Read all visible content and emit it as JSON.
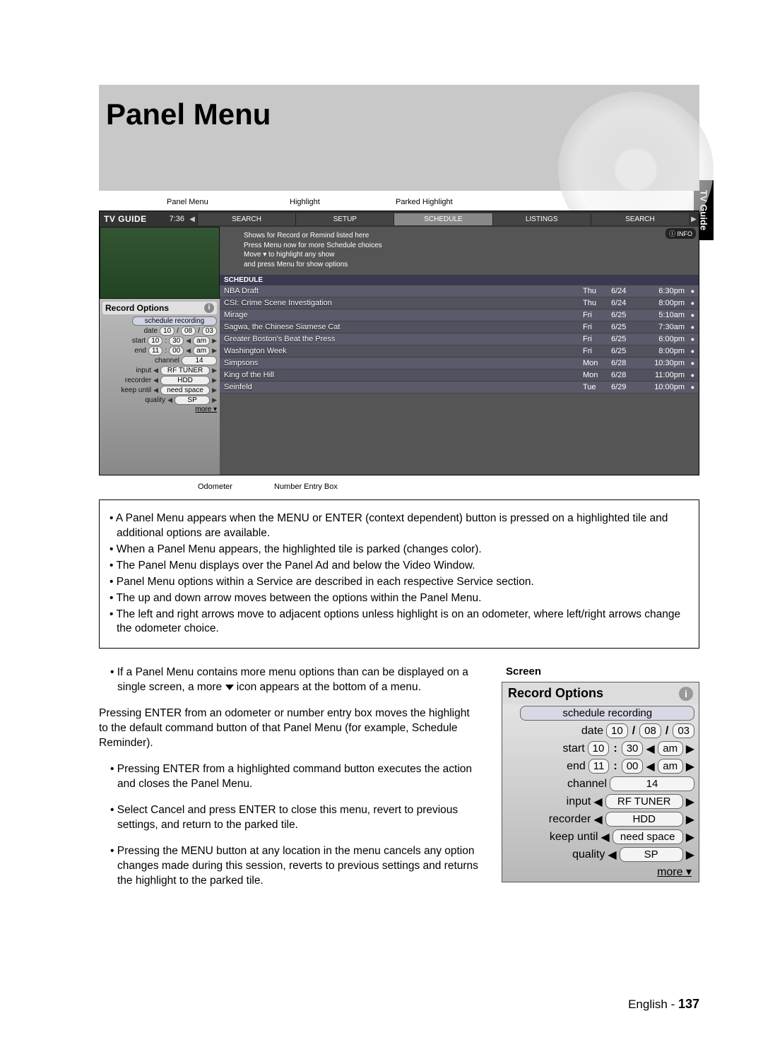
{
  "page": {
    "title": "Panel Menu",
    "side_tab": "TV Guide",
    "footer_lang": "English",
    "footer_page": "137"
  },
  "labels": {
    "panel_menu": "Panel Menu",
    "highlight": "Highlight",
    "parked": "Parked Highlight",
    "odometer": "Odometer",
    "number_entry": "Number Entry Box",
    "screen": "Screen"
  },
  "tv": {
    "logo": "TV GUIDE",
    "time": "7:36",
    "info": "INFO",
    "tabs": [
      "SEARCH",
      "SETUP",
      "SCHEDULE",
      "LISTINGS",
      "SEARCH"
    ],
    "hint": [
      "Shows for Record or Remind listed here",
      "Press Menu now for more Schedule choices",
      "Move ▾ to highlight any show",
      "and press Menu for show options"
    ],
    "schedule_header": "SCHEDULE",
    "rows": [
      {
        "title": "NBA Draft",
        "day": "Thu",
        "date": "6/24",
        "time": "6:30pm"
      },
      {
        "title": "CSI: Crime Scene Investigation",
        "day": "Thu",
        "date": "6/24",
        "time": "8:00pm"
      },
      {
        "title": "Mirage",
        "day": "Fri",
        "date": "6/25",
        "time": "5:10am"
      },
      {
        "title": "Sagwa, the Chinese Siamese Cat",
        "day": "Fri",
        "date": "6/25",
        "time": "7:30am"
      },
      {
        "title": "Greater Boston's Beat the Press",
        "day": "Fri",
        "date": "6/25",
        "time": "6:00pm"
      },
      {
        "title": "Washington Week",
        "day": "Fri",
        "date": "6/25",
        "time": "8:00pm"
      },
      {
        "title": "Simpsons",
        "day": "Mon",
        "date": "6/28",
        "time": "10:30pm"
      },
      {
        "title": "King of the Hill",
        "day": "Mon",
        "date": "6/28",
        "time": "11:00pm"
      },
      {
        "title": "Seinfeld",
        "day": "Tue",
        "date": "6/29",
        "time": "10:00pm"
      }
    ]
  },
  "panel": {
    "title": "Record Options",
    "cmd": "schedule recording",
    "date": {
      "m": "10",
      "d": "08",
      "y": "03"
    },
    "start": {
      "h": "10",
      "m": "30",
      "ap": "am"
    },
    "end": {
      "h": "11",
      "m": "00",
      "ap": "am"
    },
    "channel": "14",
    "input": "RF TUNER",
    "recorder": "HDD",
    "keep": "need space",
    "quality": "SP",
    "more": "more ▾"
  },
  "body": {
    "b1": "• A Panel Menu appears when the MENU or ENTER (context dependent) button is pressed on a highlighted tile and additional options are available.",
    "b2": "• When a Panel Menu appears, the highlighted tile is parked (changes color).",
    "b3": "• The Panel Menu displays over the Panel Ad and below the Video Window.",
    "b4": "• Panel Menu options within a Service are described in each respective Service section.",
    "b5": "• The up and down arrow moves between the options within the Panel Menu.",
    "b6": "• The left and right arrows move to adjacent options unless highlight is on an odometer, where left/right arrows change the odometer choice.",
    "c1a": "• If a Panel Menu contains more menu options than can be displayed on a single screen, a more ",
    "c1b": " icon appears at the bottom of a menu.",
    "c2": "Pressing ENTER from an odometer or number entry box moves the highlight to the default command button of that Panel Menu (for example, Schedule Reminder).",
    "c3": "• Pressing ENTER from a highlighted command button executes the action and closes the Panel Menu.",
    "c4": "• Select Cancel and press ENTER to close this menu, revert to previous settings, and return to the parked tile.",
    "c5": "• Pressing the MENU button at any location in the menu cancels any option changes made during this session, reverts to previous settings and returns the highlight to the parked tile."
  }
}
